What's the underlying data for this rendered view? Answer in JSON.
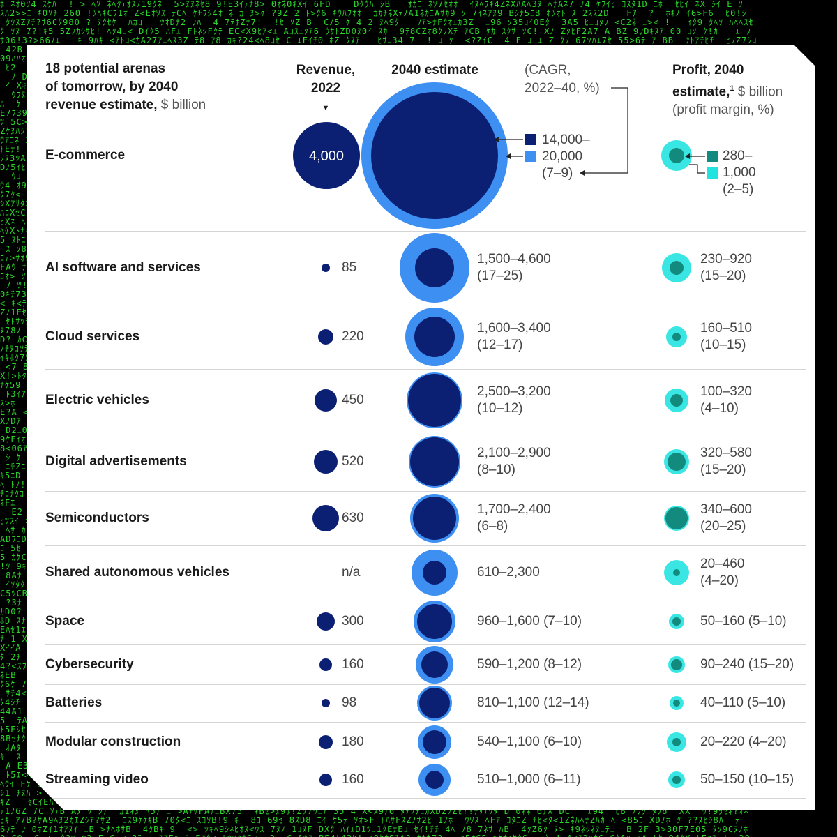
{
  "header": {
    "title_l1": "18 potential arenas",
    "title_l2": "of tomorrow, by 2040",
    "title_l3a": "revenue estimate,",
    "title_l3b": " $ billion",
    "revenue_l1": "Revenue,",
    "revenue_l2": "2022",
    "estimate": "2040 estimate",
    "cagr_l1": "(CAGR,",
    "cagr_l2": "2022–40, %)",
    "profit_l1": "Profit, 2040",
    "profit_l2a": "estimate,",
    "profit_sup": "1",
    "profit_l2b": " $ billion",
    "profit_l3": "(profit margin, %)"
  },
  "legend": {
    "rev_low": "14,000–",
    "rev_high": "20,000",
    "rev_cagr": "(7–9)",
    "profit_low": "280–",
    "profit_high": "1,000",
    "profit_margin": "(2–5)"
  },
  "colors": {
    "navy": "#0b1f73",
    "light_blue": "#3d8ff2",
    "teal_dark": "#138a7e",
    "cyan": "#23e3e0"
  },
  "chart_data": {
    "type": "bubble_table",
    "columns": [
      "Revenue, 2022",
      "2040 estimate (CAGR, 2022–40, %)",
      "Profit, 2040 estimate, $ billion (profit margin, %)"
    ],
    "rows": [
      {
        "name": "E-commerce",
        "revenue_2022": "4,000",
        "rev2040": "14,000–20,000",
        "cagr": "(7–9)",
        "profit": "280–1,000",
        "margin": "(2–5)"
      },
      {
        "name": "AI software and services",
        "revenue_2022": "85",
        "rev2040": "1,500–4,600",
        "cagr": "(17–25)",
        "profit": "230–920",
        "margin": "(15–20)"
      },
      {
        "name": "Cloud services",
        "revenue_2022": "220",
        "rev2040": "1,600–3,400",
        "cagr": "(12–17)",
        "profit": "160–510",
        "margin": "(10–15)"
      },
      {
        "name": "Electric vehicles",
        "revenue_2022": "450",
        "rev2040": "2,500–3,200",
        "cagr": "(10–12)",
        "profit": "100–320",
        "margin": "(4–10)"
      },
      {
        "name": "Digital advertisements",
        "revenue_2022": "520",
        "rev2040": "2,100–2,900",
        "cagr": "(8–10)",
        "profit": "320–580",
        "margin": "(15–20)"
      },
      {
        "name": "Semiconductors",
        "revenue_2022": "630",
        "rev2040": "1,700–2,400",
        "cagr": "(6–8)",
        "profit": "340–600",
        "margin": "(20–25)"
      },
      {
        "name": "Shared autonomous vehicles",
        "revenue_2022": "n/a",
        "rev2040": "610–2,300",
        "cagr": "",
        "profit": "20–460",
        "margin": "(4–20)"
      },
      {
        "name": "Space",
        "revenue_2022": "300",
        "rev2040": "960–1,600",
        "cagr": "(7–10)",
        "profit": "50–160",
        "margin": "(5–10)"
      },
      {
        "name": "Cybersecurity",
        "revenue_2022": "160",
        "rev2040": "590–1,200",
        "cagr": "(8–12)",
        "profit": "90–240",
        "margin": "(15–20)"
      },
      {
        "name": "Batteries",
        "revenue_2022": "98",
        "rev2040": "810–1,100",
        "cagr": "(12–14)",
        "profit": "40–110",
        "margin": "(5–10)"
      },
      {
        "name": "Modular construction",
        "revenue_2022": "180",
        "rev2040": "540–1,100",
        "cagr": "(6–10)",
        "profit": "20–220",
        "margin": "(4–20)"
      },
      {
        "name": "Streaming video",
        "revenue_2022": "160",
        "rev2040": "510–1,000",
        "cagr": "(6–11)",
        "profit": "50–150",
        "margin": "(10–15)"
      }
    ]
  }
}
